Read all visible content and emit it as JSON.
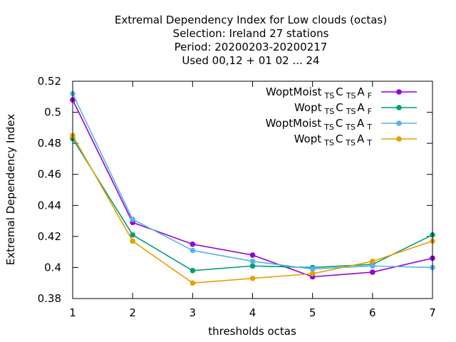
{
  "chart_data": {
    "type": "line",
    "title_lines": [
      "Extremal Dependency Index  for Low clouds (octas)",
      "Selection: Ireland     27 stations",
      "Period: 20200203-20200217",
      "Used  00,12  + 01 02 ... 24"
    ],
    "xlabel": "thresholds octas",
    "ylabel": "Extremal Dependency Index",
    "x": [
      1,
      2,
      3,
      4,
      5,
      6,
      7
    ],
    "xlim": [
      1,
      7
    ],
    "ylim": [
      0.38,
      0.52
    ],
    "yticks": [
      0.38,
      0.4,
      0.42,
      0.44,
      0.46,
      0.48,
      0.5,
      0.52
    ],
    "yticklabels": [
      "0.38",
      "0.4",
      "0.42",
      "0.44",
      "0.46",
      "0.48",
      "0.5",
      "0.52"
    ],
    "xticklabels": [
      "1",
      "2",
      "3",
      "4",
      "5",
      "6",
      "7"
    ],
    "grid": false,
    "legend_position": "top-right",
    "series": [
      {
        "legend": {
          "main": "WoptMoist",
          "sub1": "TS",
          "mid1": "C",
          "sub2": "TS",
          "mid2": "A",
          "sub3": "F"
        },
        "color": "#9400d3",
        "values": [
          0.508,
          0.429,
          0.415,
          0.408,
          0.394,
          0.397,
          0.406
        ]
      },
      {
        "legend": {
          "main": "Wopt",
          "sub1": "TS",
          "mid1": "C",
          "sub2": "TS",
          "mid2": "A",
          "sub3": "F"
        },
        "color": "#009e73",
        "values": [
          0.483,
          0.421,
          0.398,
          0.401,
          0.4,
          0.402,
          0.421
        ]
      },
      {
        "legend": {
          "main": "WoptMoist",
          "sub1": "TS",
          "mid1": "C",
          "sub2": "TS",
          "mid2": "A",
          "sub3": "T"
        },
        "color": "#56b4e9",
        "values": [
          0.512,
          0.431,
          0.411,
          0.404,
          0.399,
          0.401,
          0.4
        ]
      },
      {
        "legend": {
          "main": "Wopt",
          "sub1": "TS",
          "mid1": "C",
          "sub2": "TS",
          "mid2": "A",
          "sub3": "T"
        },
        "color": "#e69f00",
        "values": [
          0.485,
          0.417,
          0.39,
          0.393,
          0.396,
          0.404,
          0.417
        ]
      }
    ]
  }
}
